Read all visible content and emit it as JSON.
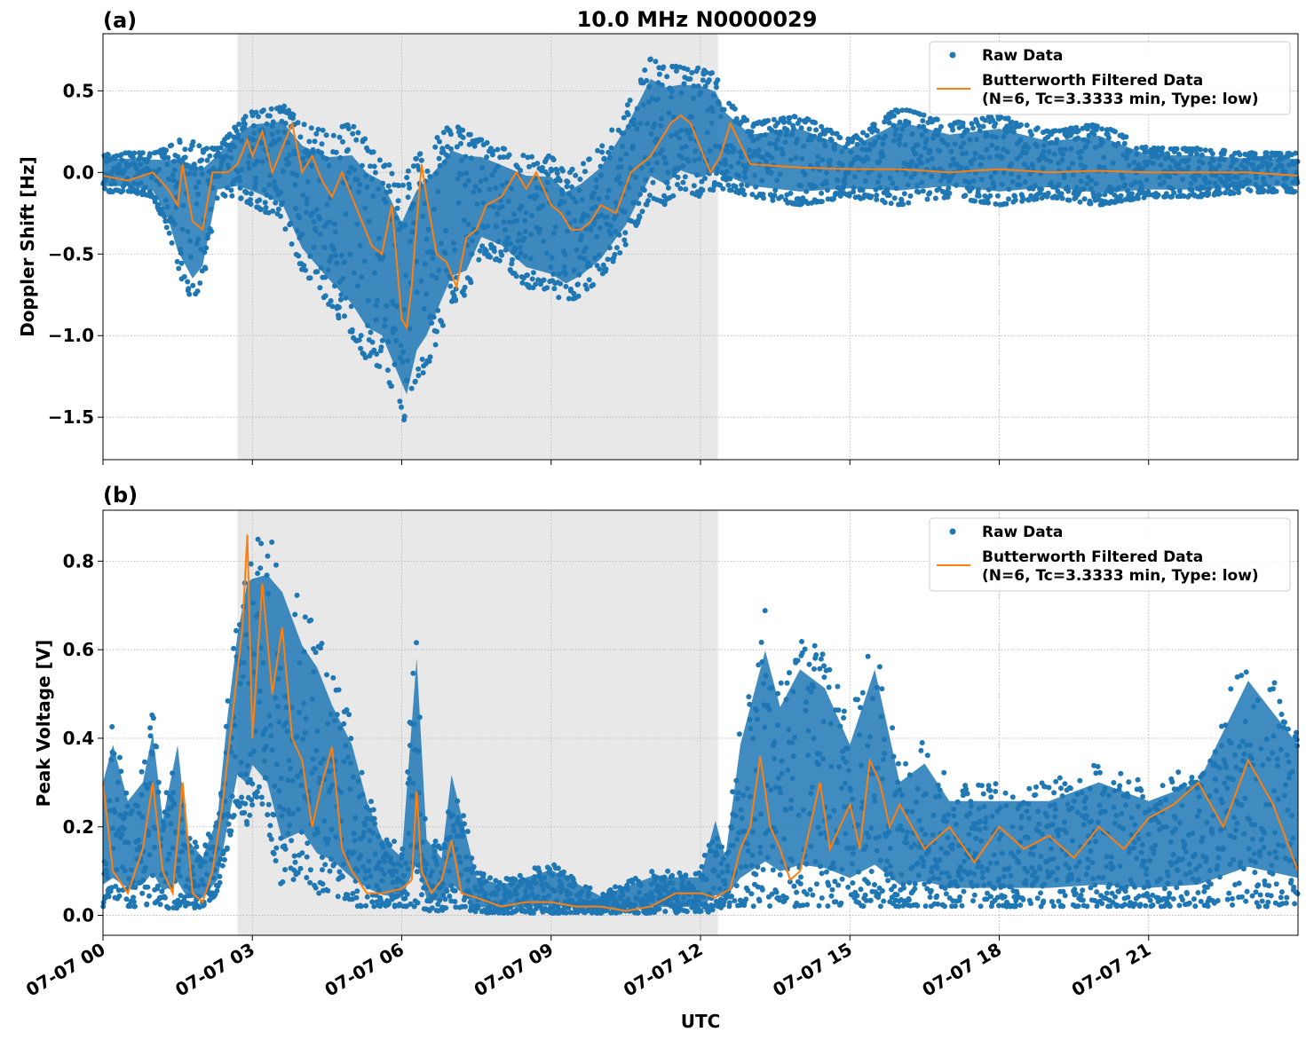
{
  "figure": {
    "title": "10.0 MHz N0000029",
    "xlabel": "UTC",
    "x_tick_labels": [
      "07-07 00",
      "07-07 03",
      "07-07 06",
      "07-07 09",
      "07-07 12",
      "07-07 15",
      "07-07 18",
      "07-07 21"
    ]
  },
  "colors": {
    "raw": "#1f77b4",
    "filtered": "#ff7f0e",
    "shade": "#e8e8e8",
    "grid": "#b0b0b0"
  },
  "chart_data": [
    {
      "type": "scatter",
      "panel_label": "(a)",
      "ylabel": "Doppler Shift [Hz]",
      "xlim": [
        0,
        24
      ],
      "ylim": [
        -1.76,
        0.85
      ],
      "y_ticks": [
        0.5,
        0.0,
        -0.5,
        -1.0,
        -1.5
      ],
      "y_tick_labels": [
        "0.5",
        "0.0",
        "−0.5",
        "−1.0",
        "−1.5"
      ],
      "x_unit": "hours UTC on 07-07",
      "shaded_span": [
        2.7,
        12.35
      ],
      "legend": {
        "position": "top-right",
        "raw_label": "Raw Data",
        "filtered_label_1": "Butterworth Filtered Data",
        "filtered_label_2": "(N=6, Tc=3.3333 min, Type: low)"
      },
      "series": [
        {
          "name": "Raw Data",
          "style": "points",
          "envelope": {
            "x": [
              0,
              0.5,
              1,
              1.3,
              1.5,
              1.8,
              2,
              2.3,
              2.7,
              3,
              3.3,
              3.6,
              4,
              4.5,
              5,
              5.3,
              5.6,
              6,
              6.1,
              6.3,
              6.5,
              7,
              7.3,
              7.6,
              8,
              8.5,
              9,
              9.3,
              9.6,
              10,
              10.5,
              11,
              11.3,
              11.6,
              12,
              12.3,
              12.5,
              13,
              14,
              15,
              16,
              17,
              18,
              19,
              20,
              21,
              22,
              23,
              24
            ],
            "upper": [
              0.12,
              0.12,
              0.12,
              0.15,
              0.2,
              0.2,
              0.15,
              0.15,
              0.3,
              0.38,
              0.4,
              0.42,
              0.3,
              0.25,
              0.3,
              0.2,
              0.15,
              -0.1,
              0.0,
              0.1,
              0.15,
              0.3,
              0.25,
              0.2,
              0.15,
              0.1,
              0.1,
              0.0,
              0.05,
              0.15,
              0.4,
              0.7,
              0.65,
              0.65,
              0.65,
              0.6,
              0.45,
              0.3,
              0.35,
              0.2,
              0.4,
              0.3,
              0.35,
              0.25,
              0.3,
              0.15,
              0.15,
              0.12,
              0.12
            ],
            "lower": [
              -0.12,
              -0.12,
              -0.15,
              -0.35,
              -0.6,
              -0.8,
              -0.7,
              -0.15,
              -0.15,
              -0.2,
              -0.25,
              -0.3,
              -0.6,
              -0.8,
              -1.0,
              -1.15,
              -1.2,
              -1.5,
              -1.6,
              -1.3,
              -1.2,
              -0.8,
              -0.75,
              -0.5,
              -0.55,
              -0.7,
              -0.75,
              -0.8,
              -0.75,
              -0.65,
              -0.45,
              -0.15,
              -0.2,
              -0.1,
              -0.15,
              -0.1,
              -0.1,
              -0.15,
              -0.2,
              -0.15,
              -0.2,
              -0.15,
              -0.2,
              -0.15,
              -0.2,
              -0.15,
              -0.15,
              -0.12,
              -0.12
            ]
          }
        },
        {
          "name": "Butterworth Filtered Data",
          "style": "line",
          "x": [
            0,
            0.5,
            1,
            1.3,
            1.5,
            1.6,
            1.8,
            2,
            2.2,
            2.5,
            2.7,
            2.9,
            3,
            3.2,
            3.4,
            3.6,
            3.8,
            4,
            4.2,
            4.4,
            4.6,
            4.8,
            5,
            5.2,
            5.4,
            5.6,
            5.8,
            6,
            6.1,
            6.2,
            6.3,
            6.4,
            6.5,
            6.7,
            6.9,
            7.1,
            7.3,
            7.5,
            7.7,
            8,
            8.3,
            8.5,
            8.7,
            9,
            9.2,
            9.4,
            9.6,
            9.8,
            10,
            10.3,
            10.6,
            10.8,
            11,
            11.2,
            11.4,
            11.6,
            11.8,
            12,
            12.2,
            12.4,
            12.6,
            13,
            14,
            15,
            16,
            17,
            18,
            19,
            20,
            21,
            22,
            23,
            24
          ],
          "y": [
            -0.02,
            -0.05,
            0.0,
            -0.1,
            -0.2,
            0.05,
            -0.3,
            -0.35,
            0.0,
            0.0,
            0.05,
            0.2,
            0.1,
            0.25,
            0.0,
            0.15,
            0.3,
            0.0,
            0.1,
            -0.05,
            -0.15,
            0.0,
            -0.15,
            -0.3,
            -0.45,
            -0.5,
            -0.2,
            -0.9,
            -0.95,
            -0.7,
            -0.3,
            0.05,
            -0.15,
            -0.5,
            -0.55,
            -0.7,
            -0.4,
            -0.35,
            -0.2,
            -0.15,
            0.0,
            -0.1,
            0.0,
            -0.2,
            -0.25,
            -0.35,
            -0.35,
            -0.3,
            -0.2,
            -0.25,
            0.0,
            0.05,
            0.1,
            0.2,
            0.3,
            0.35,
            0.3,
            0.15,
            0.0,
            0.1,
            0.3,
            0.05,
            0.03,
            0.02,
            0.02,
            0.0,
            0.02,
            0.0,
            0.01,
            0.0,
            0.0,
            0.0,
            -0.02
          ]
        }
      ]
    },
    {
      "type": "scatter",
      "panel_label": "(b)",
      "ylabel": "Peak Voltage [V]",
      "xlim": [
        0,
        24
      ],
      "ylim": [
        -0.045,
        0.915
      ],
      "y_ticks": [
        0.8,
        0.6,
        0.4,
        0.2,
        0.0
      ],
      "y_tick_labels": [
        "0.8",
        "0.6",
        "0.4",
        "0.2",
        "0.0"
      ],
      "x_unit": "hours UTC on 07-07",
      "shaded_span": [
        2.7,
        12.35
      ],
      "legend": {
        "position": "top-right",
        "raw_label": "Raw Data",
        "filtered_label_1": "Butterworth Filtered Data",
        "filtered_label_2": "(N=6, Tc=3.3333 min, Type: low)"
      },
      "series": [
        {
          "name": "Raw Data",
          "style": "points",
          "envelope": {
            "x": [
              0,
              0.2,
              0.5,
              0.8,
              1,
              1.2,
              1.5,
              1.7,
              2,
              2.3,
              2.5,
              2.7,
              2.9,
              3,
              3.3,
              3.6,
              4,
              4.3,
              4.6,
              5,
              5.3,
              5.6,
              6,
              6.3,
              6.5,
              6.8,
              7,
              7.5,
              8,
              9,
              10,
              11,
              12,
              12.3,
              12.5,
              12.8,
              13,
              13.3,
              13.6,
              14,
              14.5,
              15,
              15.5,
              16,
              16.5,
              17,
              18,
              19,
              20,
              21,
              22,
              23,
              24
            ],
            "upper": [
              0.35,
              0.45,
              0.3,
              0.35,
              0.48,
              0.25,
              0.45,
              0.2,
              0.15,
              0.25,
              0.5,
              0.7,
              0.85,
              0.85,
              0.87,
              0.85,
              0.7,
              0.65,
              0.55,
              0.45,
              0.3,
              0.2,
              0.15,
              0.68,
              0.2,
              0.15,
              0.37,
              0.1,
              0.08,
              0.12,
              0.05,
              0.1,
              0.1,
              0.25,
              0.15,
              0.45,
              0.55,
              0.7,
              0.55,
              0.65,
              0.6,
              0.45,
              0.65,
              0.35,
              0.4,
              0.3,
              0.3,
              0.3,
              0.35,
              0.3,
              0.35,
              0.62,
              0.45
            ],
            "lower": [
              0.02,
              0.02,
              0.02,
              0.02,
              0.03,
              0.02,
              0.01,
              0.01,
              0.02,
              0.05,
              0.15,
              0.25,
              0.2,
              0.25,
              0.2,
              0.05,
              0.1,
              0.05,
              0.05,
              0.02,
              0.02,
              0.02,
              0.02,
              0.02,
              0.01,
              0.01,
              0.02,
              0.005,
              0.005,
              0.005,
              0.005,
              0.005,
              0.005,
              0.01,
              0.02,
              0.02,
              0.02,
              0.02,
              0.02,
              0.02,
              0.02,
              0.02,
              0.02,
              0.02,
              0.02,
              0.02,
              0.02,
              0.02,
              0.02,
              0.02,
              0.02,
              0.02,
              0.02
            ]
          }
        },
        {
          "name": "Butterworth Filtered Data",
          "style": "line",
          "x": [
            0,
            0.2,
            0.5,
            0.8,
            1,
            1.2,
            1.4,
            1.6,
            1.8,
            2,
            2.2,
            2.4,
            2.6,
            2.8,
            2.9,
            3,
            3.2,
            3.4,
            3.6,
            3.8,
            4,
            4.2,
            4.4,
            4.6,
            4.8,
            5,
            5.3,
            5.6,
            6,
            6.2,
            6.3,
            6.4,
            6.6,
            6.8,
            7,
            7.2,
            7.5,
            8,
            8.5,
            9,
            9.5,
            10,
            10.5,
            11,
            11.5,
            12,
            12.3,
            12.6,
            12.8,
            13,
            13.2,
            13.4,
            13.6,
            13.8,
            14,
            14.2,
            14.4,
            14.6,
            14.8,
            15,
            15.2,
            15.4,
            15.6,
            15.8,
            16,
            16.5,
            17,
            17.5,
            18,
            18.5,
            19,
            19.5,
            20,
            20.5,
            21,
            21.5,
            22,
            22.5,
            23,
            23.5,
            24
          ],
          "y": [
            0.3,
            0.1,
            0.05,
            0.15,
            0.3,
            0.1,
            0.05,
            0.3,
            0.05,
            0.03,
            0.1,
            0.25,
            0.45,
            0.65,
            0.86,
            0.4,
            0.75,
            0.5,
            0.65,
            0.4,
            0.35,
            0.2,
            0.3,
            0.38,
            0.15,
            0.1,
            0.05,
            0.05,
            0.06,
            0.08,
            0.28,
            0.1,
            0.05,
            0.08,
            0.17,
            0.05,
            0.04,
            0.02,
            0.03,
            0.03,
            0.02,
            0.02,
            0.01,
            0.02,
            0.05,
            0.05,
            0.04,
            0.06,
            0.15,
            0.2,
            0.36,
            0.2,
            0.15,
            0.08,
            0.1,
            0.2,
            0.3,
            0.15,
            0.2,
            0.25,
            0.15,
            0.35,
            0.3,
            0.2,
            0.25,
            0.15,
            0.2,
            0.12,
            0.2,
            0.15,
            0.18,
            0.13,
            0.2,
            0.15,
            0.22,
            0.25,
            0.3,
            0.2,
            0.35,
            0.25,
            0.1
          ]
        }
      ]
    }
  ]
}
